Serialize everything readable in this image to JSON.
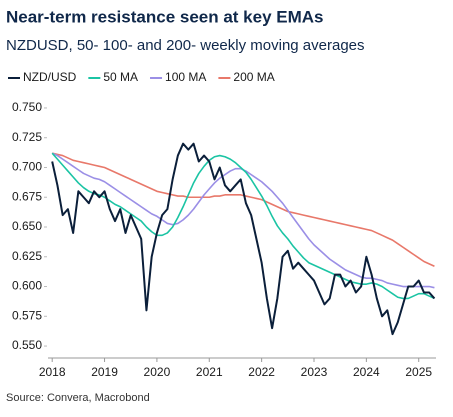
{
  "chart_data": {
    "type": "line",
    "title": "Near-term resistance seen at key EMAs",
    "subtitle": "NZDUSD, 50- 100- and 200- weekly moving averages",
    "source": "Source: Convera, Macrobond",
    "legend": "top",
    "x": [
      2018.0,
      2018.1,
      2018.2,
      2018.3,
      2018.4,
      2018.5,
      2018.6,
      2018.7,
      2018.8,
      2018.9,
      2019.0,
      2019.1,
      2019.2,
      2019.3,
      2019.4,
      2019.5,
      2019.6,
      2019.7,
      2019.8,
      2019.9,
      2020.0,
      2020.1,
      2020.2,
      2020.3,
      2020.4,
      2020.5,
      2020.6,
      2020.7,
      2020.8,
      2020.9,
      2021.0,
      2021.1,
      2021.2,
      2021.3,
      2021.4,
      2021.5,
      2021.6,
      2021.7,
      2021.8,
      2021.9,
      2022.0,
      2022.1,
      2022.2,
      2022.3,
      2022.4,
      2022.5,
      2022.6,
      2022.7,
      2022.8,
      2022.9,
      2023.0,
      2023.1,
      2023.2,
      2023.3,
      2023.4,
      2023.5,
      2023.6,
      2023.7,
      2023.8,
      2023.9,
      2024.0,
      2024.1,
      2024.2,
      2024.3,
      2024.4,
      2024.5,
      2024.6,
      2024.7,
      2024.8,
      2024.9,
      2025.0,
      2025.1,
      2025.2,
      2025.3
    ],
    "series": [
      {
        "name": "NZD/USD",
        "color": "#0b1f3a",
        "width": 2,
        "values": [
          0.705,
          0.685,
          0.66,
          0.665,
          0.645,
          0.68,
          0.675,
          0.67,
          0.68,
          0.675,
          0.68,
          0.665,
          0.655,
          0.665,
          0.645,
          0.66,
          0.65,
          0.64,
          0.58,
          0.625,
          0.645,
          0.66,
          0.665,
          0.69,
          0.71,
          0.72,
          0.715,
          0.72,
          0.705,
          0.71,
          0.705,
          0.69,
          0.7,
          0.685,
          0.68,
          0.685,
          0.69,
          0.67,
          0.66,
          0.64,
          0.62,
          0.59,
          0.565,
          0.59,
          0.625,
          0.63,
          0.615,
          0.62,
          0.615,
          0.61,
          0.605,
          0.595,
          0.585,
          0.59,
          0.61,
          0.61,
          0.6,
          0.605,
          0.595,
          0.6,
          0.625,
          0.61,
          0.59,
          0.575,
          0.58,
          0.56,
          0.57,
          0.585,
          0.6,
          0.6,
          0.605,
          0.595,
          0.595,
          0.59
        ]
      },
      {
        "name": "50 MA",
        "color": "#1bc4a4",
        "width": 1.6,
        "values": [
          0.712,
          0.707,
          0.702,
          0.697,
          0.692,
          0.687,
          0.683,
          0.68,
          0.678,
          0.677,
          0.675,
          0.672,
          0.669,
          0.667,
          0.664,
          0.661,
          0.658,
          0.655,
          0.65,
          0.646,
          0.643,
          0.643,
          0.645,
          0.65,
          0.658,
          0.667,
          0.677,
          0.687,
          0.695,
          0.701,
          0.706,
          0.709,
          0.71,
          0.709,
          0.707,
          0.704,
          0.7,
          0.696,
          0.69,
          0.683,
          0.676,
          0.668,
          0.659,
          0.651,
          0.645,
          0.64,
          0.634,
          0.629,
          0.624,
          0.62,
          0.618,
          0.616,
          0.614,
          0.612,
          0.61,
          0.608,
          0.606,
          0.604,
          0.603,
          0.602,
          0.602,
          0.603,
          0.602,
          0.6,
          0.597,
          0.594,
          0.591,
          0.59,
          0.59,
          0.592,
          0.594,
          0.594,
          0.592,
          0.59
        ]
      },
      {
        "name": "100 MA",
        "color": "#9b8fe6",
        "width": 1.6,
        "values": [
          0.712,
          0.71,
          0.707,
          0.704,
          0.701,
          0.698,
          0.695,
          0.693,
          0.691,
          0.69,
          0.688,
          0.685,
          0.682,
          0.679,
          0.676,
          0.673,
          0.67,
          0.667,
          0.664,
          0.661,
          0.659,
          0.656,
          0.653,
          0.652,
          0.653,
          0.656,
          0.66,
          0.665,
          0.671,
          0.677,
          0.682,
          0.687,
          0.691,
          0.694,
          0.697,
          0.699,
          0.699,
          0.697,
          0.694,
          0.691,
          0.688,
          0.684,
          0.68,
          0.675,
          0.67,
          0.664,
          0.658,
          0.652,
          0.646,
          0.64,
          0.635,
          0.631,
          0.627,
          0.623,
          0.62,
          0.617,
          0.614,
          0.612,
          0.61,
          0.608,
          0.607,
          0.607,
          0.606,
          0.605,
          0.603,
          0.602,
          0.601,
          0.6,
          0.6,
          0.6,
          0.6,
          0.6,
          0.6,
          0.599
        ]
      },
      {
        "name": "200 MA",
        "color": "#e8786a",
        "width": 1.6,
        "values": [
          0.712,
          0.711,
          0.71,
          0.708,
          0.706,
          0.705,
          0.704,
          0.703,
          0.702,
          0.701,
          0.7,
          0.698,
          0.696,
          0.694,
          0.692,
          0.69,
          0.688,
          0.686,
          0.684,
          0.682,
          0.68,
          0.679,
          0.678,
          0.677,
          0.676,
          0.676,
          0.675,
          0.675,
          0.675,
          0.675,
          0.675,
          0.676,
          0.676,
          0.677,
          0.677,
          0.677,
          0.677,
          0.676,
          0.675,
          0.674,
          0.673,
          0.671,
          0.669,
          0.667,
          0.665,
          0.663,
          0.662,
          0.661,
          0.66,
          0.659,
          0.658,
          0.657,
          0.656,
          0.655,
          0.654,
          0.653,
          0.652,
          0.651,
          0.65,
          0.649,
          0.648,
          0.647,
          0.645,
          0.643,
          0.641,
          0.639,
          0.636,
          0.633,
          0.63,
          0.627,
          0.624,
          0.621,
          0.619,
          0.617
        ]
      }
    ],
    "xlim": [
      2017.92,
      2025.33
    ],
    "xticks": [
      2018,
      2019,
      2020,
      2021,
      2022,
      2023,
      2024,
      2025
    ],
    "ylim": [
      0.545,
      0.755
    ],
    "yticks": [
      {
        "value": 0.55,
        "label": "0.550"
      },
      {
        "value": 0.575,
        "label": "0.575"
      },
      {
        "value": 0.6,
        "label": "0.600"
      },
      {
        "value": 0.625,
        "label": "0.625"
      },
      {
        "value": 0.65,
        "label": "0.650"
      },
      {
        "value": 0.675,
        "label": "0.675"
      },
      {
        "value": 0.7,
        "label": "0.700"
      },
      {
        "value": 0.725,
        "label": "0.725"
      },
      {
        "value": 0.75,
        "label": "0.750"
      }
    ],
    "grid": false
  }
}
